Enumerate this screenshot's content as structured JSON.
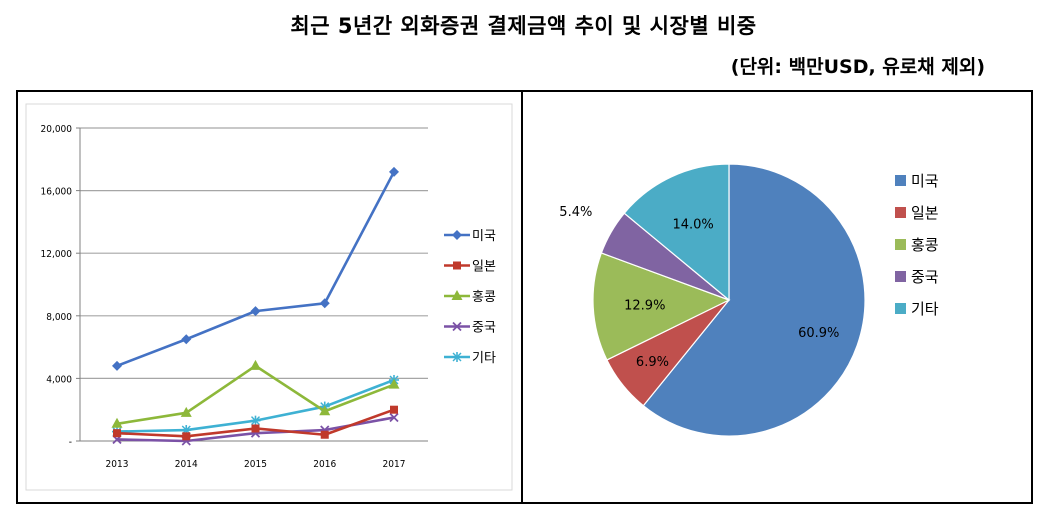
{
  "header": {
    "title": "최근 5년간 외화증권 결제금액 추이 및 시장별 비중",
    "unit": "(단위: 백만USD, 유로채 제외)"
  },
  "chart_data": [
    {
      "type": "line",
      "categories": [
        "2013",
        "2014",
        "2015",
        "2016",
        "2017"
      ],
      "ylim": [
        0,
        20000
      ],
      "yticks": [
        0,
        4000,
        8000,
        12000,
        16000,
        20000
      ],
      "ytick_labels": [
        "-",
        "4,000",
        "8,000",
        "12,000",
        "16,000",
        "20,000"
      ],
      "grid": true,
      "legend_position": "right",
      "series": [
        {
          "name": "미국",
          "color": "#4472C4",
          "marker": "diamond",
          "values": [
            4800,
            6500,
            8300,
            8800,
            17200
          ]
        },
        {
          "name": "일본",
          "color": "#C0392B",
          "marker": "square",
          "values": [
            500,
            300,
            800,
            400,
            2000
          ]
        },
        {
          "name": "홍콩",
          "color": "#8DB83A",
          "marker": "triangle",
          "values": [
            1100,
            1800,
            4800,
            1900,
            3600
          ]
        },
        {
          "name": "중국",
          "color": "#7B52A6",
          "marker": "x",
          "values": [
            100,
            0,
            500,
            700,
            1500
          ]
        },
        {
          "name": "기타",
          "color": "#3EB1D3",
          "marker": "star",
          "values": [
            600,
            700,
            1300,
            2200,
            3900
          ]
        }
      ]
    },
    {
      "type": "pie",
      "legend_position": "right",
      "slices": [
        {
          "name": "미국",
          "value": 60.9,
          "label": "60.9%",
          "color": "#4F81BD"
        },
        {
          "name": "일본",
          "value": 6.9,
          "label": "6.9%",
          "color": "#C0504D"
        },
        {
          "name": "홍콩",
          "value": 12.9,
          "label": "12.9%",
          "color": "#9BBB59"
        },
        {
          "name": "중국",
          "value": 5.4,
          "label": "5.4%",
          "color": "#8064A2"
        },
        {
          "name": "기타",
          "value": 14.0,
          "label": "14.0%",
          "color": "#4BACC6"
        }
      ]
    }
  ]
}
